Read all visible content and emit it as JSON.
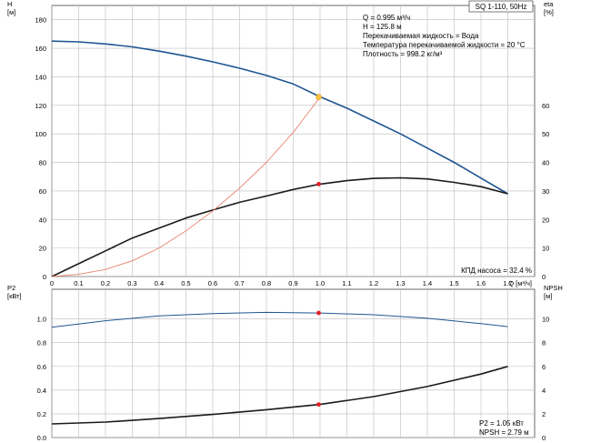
{
  "chart_data": [
    {
      "type": "line",
      "title": "SQ 1-110, 50Hz",
      "x_axis": {
        "label": "Q [м³/ч]",
        "min": 0,
        "max": 1.8,
        "ticks": [
          "0",
          "0.1",
          "0.2",
          "0.3",
          "0.4",
          "0.5",
          "0.6",
          "0.7",
          "0.8",
          "0.9",
          "1.0",
          "1.1",
          "1.2",
          "1.3",
          "1.4",
          "1.5",
          "1.6",
          "1.7"
        ]
      },
      "y_left": {
        "label_top": "H",
        "label_unit": "[м]",
        "min": 0,
        "max": 190,
        "ticks": [
          "0",
          "20",
          "40",
          "60",
          "80",
          "100",
          "120",
          "140",
          "160",
          "180"
        ]
      },
      "y_right": {
        "label_top": "eta",
        "label_unit": "[%]",
        "min": 0,
        "max": 95,
        "ticks": [
          "0",
          "10",
          "20",
          "30",
          "40",
          "50",
          "60"
        ]
      },
      "grid": true,
      "series": [
        {
          "key": "H",
          "axis": "left",
          "color": "#1f5592",
          "x": [
            0,
            0.1,
            0.2,
            0.3,
            0.4,
            0.5,
            0.6,
            0.7,
            0.8,
            0.9,
            1.0,
            1.1,
            1.2,
            1.3,
            1.4,
            1.5,
            1.6,
            1.7
          ],
          "y": [
            165,
            164.5,
            163,
            161,
            158,
            154.5,
            150.5,
            146,
            141,
            135,
            126,
            118,
            109,
            100,
            90,
            80,
            69,
            58
          ]
        },
        {
          "key": "eta",
          "axis": "right",
          "color": "#1a1a1a",
          "x": [
            0,
            0.1,
            0.2,
            0.3,
            0.4,
            0.5,
            0.6,
            0.7,
            0.8,
            0.9,
            1.0,
            1.1,
            1.2,
            1.3,
            1.4,
            1.5,
            1.6,
            1.7
          ],
          "y": [
            0,
            4.5,
            9,
            13.5,
            17,
            20.5,
            23.3,
            26,
            28.2,
            30.5,
            32.4,
            33.6,
            34.4,
            34.6,
            34.2,
            33.0,
            31.5,
            29
          ]
        },
        {
          "key": "system",
          "axis": "left",
          "color": "#e8826e",
          "x": [
            0,
            0.1,
            0.2,
            0.3,
            0.4,
            0.5,
            0.6,
            0.7,
            0.8,
            0.9,
            1.0
          ],
          "y": [
            0,
            1.5,
            5,
            11,
            20,
            32,
            46,
            62,
            80,
            101,
            125.8
          ]
        }
      ],
      "operating_point": {
        "q": 0.995,
        "h": 125.8,
        "eta": 32.4
      },
      "info_lines": [
        "Q = 0.995 м³/ч",
        "H = 125.8 м",
        "Перекачиваемая жидкость = Вода",
        "Температура перекачиваемой жидкости = 20 °C",
        "Плотность = 998.2 кг/м³"
      ],
      "annotation": "КПД насоса = 32.4 %"
    },
    {
      "type": "line",
      "y_left": {
        "label_top": "P2",
        "label_unit": "[кВт]",
        "min": 0,
        "max": 1.25,
        "ticks": [
          "0.0",
          "0.2",
          "0.4",
          "0.6",
          "0.8",
          "1.0"
        ]
      },
      "y_right": {
        "label_top": "NPSH",
        "label_unit": "[м]",
        "min": 0,
        "max": 12.5,
        "ticks": [
          "0",
          "2",
          "4",
          "6",
          "8",
          "10"
        ]
      },
      "grid": true,
      "series": [
        {
          "key": "P2",
          "axis": "left",
          "color": "#1f5592",
          "x": [
            0,
            0.2,
            0.4,
            0.6,
            0.8,
            1.0,
            1.2,
            1.4,
            1.6,
            1.7
          ],
          "y": [
            0.93,
            0.985,
            1.025,
            1.045,
            1.055,
            1.05,
            1.035,
            1.005,
            0.96,
            0.935
          ]
        },
        {
          "key": "NPSH",
          "axis": "right",
          "color": "#1a1a1a",
          "x": [
            0,
            0.2,
            0.4,
            0.6,
            0.8,
            1.0,
            1.2,
            1.4,
            1.6,
            1.7
          ],
          "y": [
            1.15,
            1.3,
            1.6,
            1.95,
            2.35,
            2.79,
            3.45,
            4.3,
            5.35,
            6.0
          ]
        }
      ],
      "operating_point": {
        "q": 0.995,
        "p2": 1.05,
        "npsh": 2.79
      },
      "info_lines": [
        "P2 = 1.05 кВт",
        "NPSH = 2.79 м"
      ]
    }
  ],
  "colors": {
    "grid": "#bdbdbd",
    "axis": "#444444",
    "marker": "#e02020",
    "marker_main": "#f4c341"
  }
}
